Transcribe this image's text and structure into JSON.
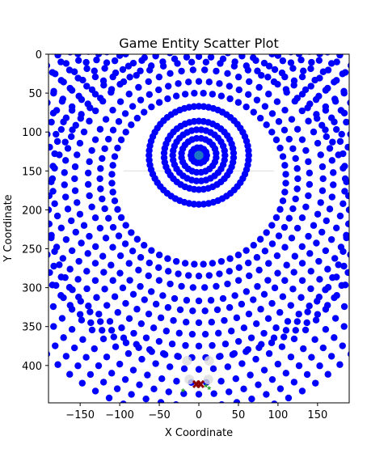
{
  "chart_data": {
    "type": "scatter",
    "title": "Game Entity Scatter Plot",
    "xlabel": "X Coordinate",
    "ylabel": "Y Coordinate",
    "xlim": [
      -190,
      190
    ],
    "ylim": [
      448,
      0
    ],
    "y_inverted": true,
    "grid": false,
    "xticks": [
      -150,
      -100,
      -50,
      0,
      50,
      100,
      150
    ],
    "yticks": [
      0,
      50,
      100,
      150,
      200,
      250,
      300,
      350,
      400
    ],
    "xtick_labels": [
      "−150",
      "−100",
      "−50",
      "0",
      "50",
      "100",
      "150"
    ],
    "ytick_labels": [
      "0",
      "50",
      "100",
      "150",
      "200",
      "250",
      "300",
      "350",
      "400"
    ],
    "colors": {
      "ring_points": "#0000ff",
      "center_disc": "#1f77c4",
      "guide_line": "#dddddd",
      "faint_points": "#dcdcdc",
      "enemy_markers": "#8b0000",
      "item_markers": "#2ca02c"
    },
    "rings": [
      {
        "center": [
          0,
          130
        ],
        "radius": 10,
        "count": 14
      },
      {
        "center": [
          0,
          130
        ],
        "radius": 22,
        "count": 24
      },
      {
        "center": [
          0,
          130
        ],
        "radius": 33,
        "count": 34
      },
      {
        "center": [
          0,
          130
        ],
        "radius": 44,
        "count": 46
      },
      {
        "center": [
          0,
          130
        ],
        "radius": 63,
        "count": 64
      },
      {
        "center": [
          0,
          160
        ],
        "radius": 110,
        "count": 60
      },
      {
        "center": [
          0,
          160
        ],
        "radius": 125,
        "count": 60
      },
      {
        "center": [
          0,
          160
        ],
        "radius": 140,
        "count": 60
      },
      {
        "center": [
          0,
          160
        ],
        "radius": 157,
        "count": 64
      },
      {
        "center": [
          0,
          160
        ],
        "radius": 170,
        "count": 68
      },
      {
        "center": [
          0,
          160
        ],
        "radius": 185,
        "count": 72
      },
      {
        "center": [
          0,
          160
        ],
        "radius": 200,
        "count": 76
      },
      {
        "center": [
          0,
          160
        ],
        "radius": 215,
        "count": 80
      },
      {
        "center": [
          0,
          160
        ],
        "radius": 230,
        "count": 84
      },
      {
        "center": [
          0,
          200
        ],
        "radius": 190,
        "count": 66
      },
      {
        "center": [
          0,
          200
        ],
        "radius": 205,
        "count": 70
      },
      {
        "center": [
          0,
          200
        ],
        "radius": 222,
        "count": 74
      },
      {
        "center": [
          0,
          200
        ],
        "radius": 237,
        "count": 78
      },
      {
        "center": [
          0,
          200
        ],
        "radius": 252,
        "count": 82
      },
      {
        "center": [
          0,
          200
        ],
        "radius": 267,
        "count": 86
      }
    ],
    "center_disc": {
      "center": [
        0,
        130
      ],
      "radius": 8
    },
    "guide_line": {
      "y": 150,
      "x": [
        -95,
        95
      ]
    },
    "faint_points": [
      [
        -15,
        394
      ],
      [
        13,
        394
      ],
      [
        -12,
        418
      ],
      [
        12,
        418
      ]
    ],
    "enemy_markers": [
      [
        -3,
        424
      ],
      [
        2,
        424
      ]
    ],
    "item_markers": [
      [
        -20,
        432
      ],
      [
        13,
        429
      ],
      [
        9,
        426
      ]
    ]
  }
}
